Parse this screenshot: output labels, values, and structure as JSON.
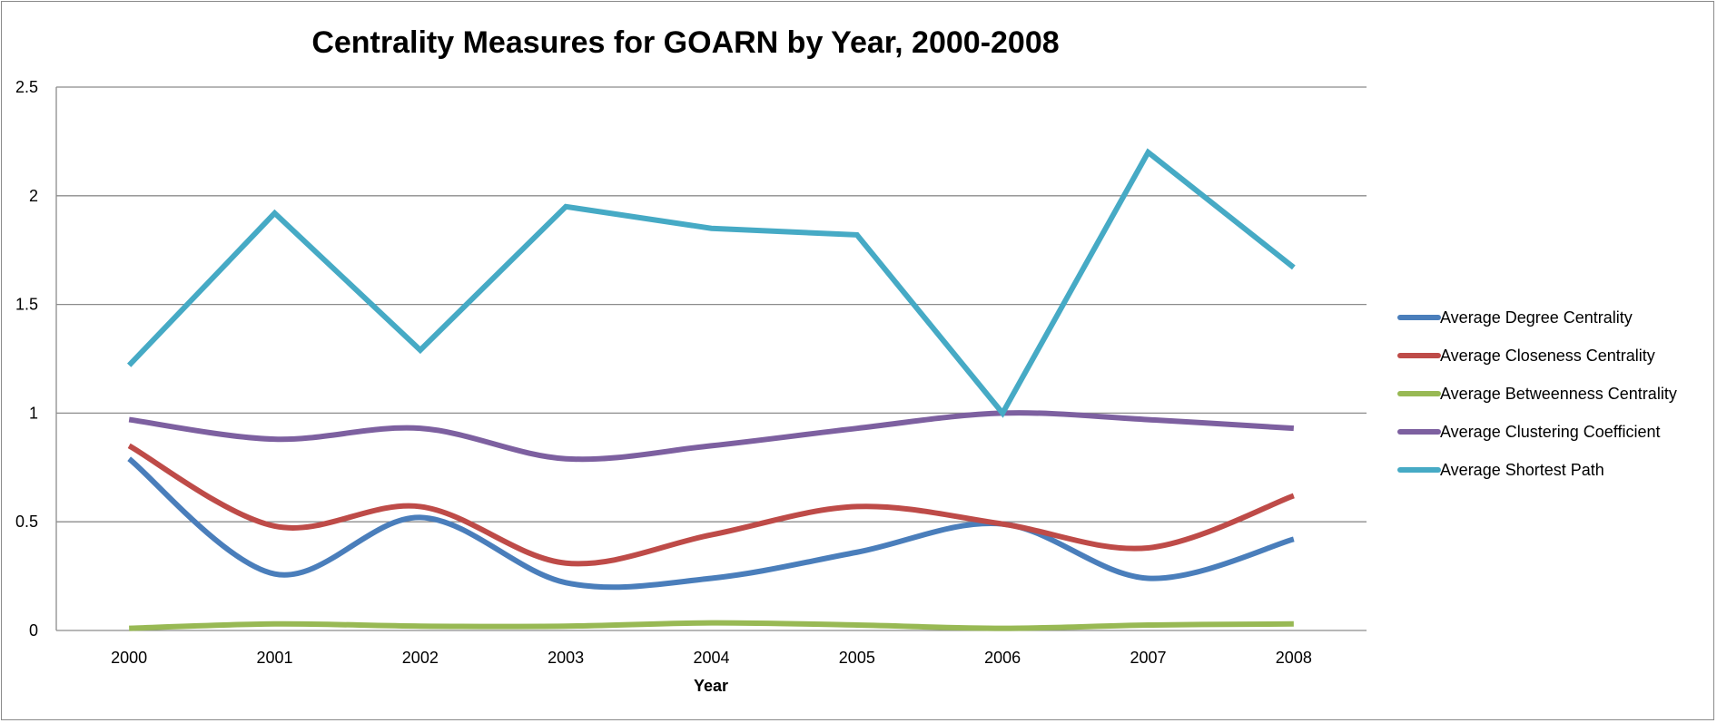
{
  "chart_data": {
    "type": "line",
    "title": "Centrality Measures for GOARN by Year, 2000-2008",
    "xlabel": "Year",
    "ylabel": "",
    "categories": [
      "2000",
      "2001",
      "2002",
      "2003",
      "2004",
      "2005",
      "2006",
      "2007",
      "2008"
    ],
    "ylim": [
      0,
      2.5
    ],
    "yticks": [
      "0",
      "0.5",
      "1",
      "1.5",
      "2",
      "2.5"
    ],
    "grid": true,
    "legend_position": "right",
    "series": [
      {
        "name": "Average Degree Centrality",
        "color": "#4a7ebb",
        "smooth": true,
        "values": [
          0.79,
          0.26,
          0.52,
          0.22,
          0.24,
          0.36,
          0.49,
          0.24,
          0.42
        ]
      },
      {
        "name": "Average Closeness Centrality",
        "color": "#be4b48",
        "smooth": true,
        "values": [
          0.85,
          0.48,
          0.57,
          0.31,
          0.44,
          0.57,
          0.49,
          0.38,
          0.62
        ]
      },
      {
        "name": "Average Betweenness Centrality",
        "color": "#98b954",
        "smooth": true,
        "values": [
          0.01,
          0.03,
          0.02,
          0.02,
          0.035,
          0.025,
          0.01,
          0.025,
          0.03
        ]
      },
      {
        "name": "Average Clustering Coefficient",
        "color": "#7d60a0",
        "smooth": true,
        "values": [
          0.97,
          0.88,
          0.93,
          0.79,
          0.85,
          0.93,
          1.0,
          0.97,
          0.93
        ]
      },
      {
        "name": "Average Shortest Path",
        "color": "#46aac5",
        "smooth": false,
        "values": [
          1.22,
          1.92,
          1.29,
          1.95,
          1.85,
          1.82,
          1.0,
          2.2,
          1.67
        ]
      }
    ]
  }
}
